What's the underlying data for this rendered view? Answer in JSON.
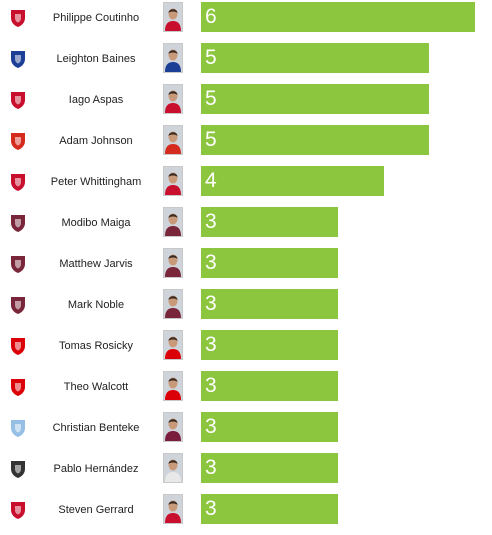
{
  "chart_data": {
    "type": "bar",
    "orientation": "horizontal",
    "bar_color": "#8cc63f",
    "value_label_color": "#ffffff",
    "xlim": [
      0,
      6
    ],
    "categories": [
      "Philippe Coutinho",
      "Leighton Baines",
      "Iago Aspas",
      "Adam Johnson",
      "Peter Whittingham",
      "Modibo Maiga",
      "Matthew Jarvis",
      "Mark Noble",
      "Tomas Rosicky",
      "Theo Walcott",
      "Christian Benteke",
      "Pablo Hernández",
      "Steven Gerrard"
    ],
    "values": [
      6,
      5,
      5,
      5,
      4,
      3,
      3,
      3,
      3,
      3,
      3,
      3,
      3
    ],
    "rows": [
      {
        "player": "Philippe Coutinho",
        "value": 6,
        "club_icon": "liverpool-crest-icon",
        "crest_color": "#c8102e",
        "shirt_color": "#c8102e"
      },
      {
        "player": "Leighton Baines",
        "value": 5,
        "club_icon": "everton-crest-icon",
        "crest_color": "#1b3f94",
        "shirt_color": "#1b3f94"
      },
      {
        "player": "Iago Aspas",
        "value": 5,
        "club_icon": "liverpool-crest-icon",
        "crest_color": "#c8102e",
        "shirt_color": "#c8102e"
      },
      {
        "player": "Adam Johnson",
        "value": 5,
        "club_icon": "sunderland-crest-icon",
        "crest_color": "#d52b1e",
        "shirt_color": "#d52b1e"
      },
      {
        "player": "Peter Whittingham",
        "value": 4,
        "club_icon": "cardiff-crest-icon",
        "crest_color": "#c8102e",
        "shirt_color": "#c8102e"
      },
      {
        "player": "Modibo Maiga",
        "value": 3,
        "club_icon": "west-ham-crest-icon",
        "crest_color": "#7a263a",
        "shirt_color": "#7a263a"
      },
      {
        "player": "Matthew Jarvis",
        "value": 3,
        "club_icon": "west-ham-crest-icon",
        "crest_color": "#7a263a",
        "shirt_color": "#7a263a"
      },
      {
        "player": "Mark Noble",
        "value": 3,
        "club_icon": "west-ham-crest-icon",
        "crest_color": "#7a263a",
        "shirt_color": "#7a263a"
      },
      {
        "player": "Tomas Rosicky",
        "value": 3,
        "club_icon": "arsenal-crest-icon",
        "crest_color": "#db0007",
        "shirt_color": "#db0007"
      },
      {
        "player": "Theo Walcott",
        "value": 3,
        "club_icon": "arsenal-crest-icon",
        "crest_color": "#db0007",
        "shirt_color": "#db0007"
      },
      {
        "player": "Christian Benteke",
        "value": 3,
        "club_icon": "aston-villa-crest-icon",
        "crest_color": "#95bfe5",
        "shirt_color": "#7a1d3d"
      },
      {
        "player": "Pablo Hernández",
        "value": 3,
        "club_icon": "swansea-crest-icon",
        "crest_color": "#333333",
        "shirt_color": "#e8e8e8"
      },
      {
        "player": "Steven Gerrard",
        "value": 3,
        "club_icon": "liverpool-crest-icon",
        "crest_color": "#c8102e",
        "shirt_color": "#c8102e"
      }
    ]
  }
}
